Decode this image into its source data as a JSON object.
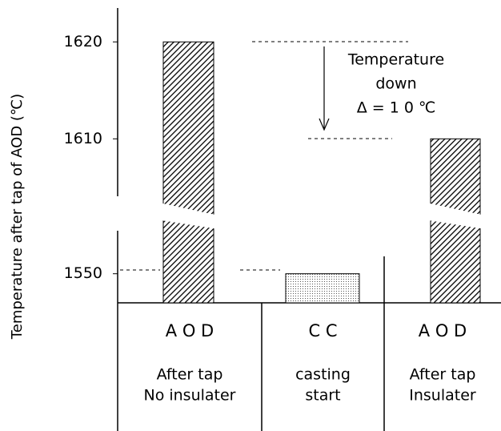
{
  "chart_data": {
    "type": "bar",
    "y_label": "Temperature after tap of AOD (℃)",
    "categories": [
      "A O D",
      "C C",
      "A O D"
    ],
    "category_details": [
      [
        "After tap",
        "No insulater"
      ],
      [
        "casting",
        "start"
      ],
      [
        "After tap",
        "Insulater"
      ]
    ],
    "values": [
      1620,
      1550,
      1610
    ],
    "patterns": [
      "hatch",
      "dots",
      "hatch"
    ],
    "color": "#000000",
    "ylim": [
      1547,
      1623
    ],
    "ybreak": [
      1554,
      1604
    ],
    "yticks": [
      1550,
      1610,
      1620
    ],
    "annotation": [
      "Temperature",
      "down",
      "Δ = 1 0 ℃"
    ]
  }
}
